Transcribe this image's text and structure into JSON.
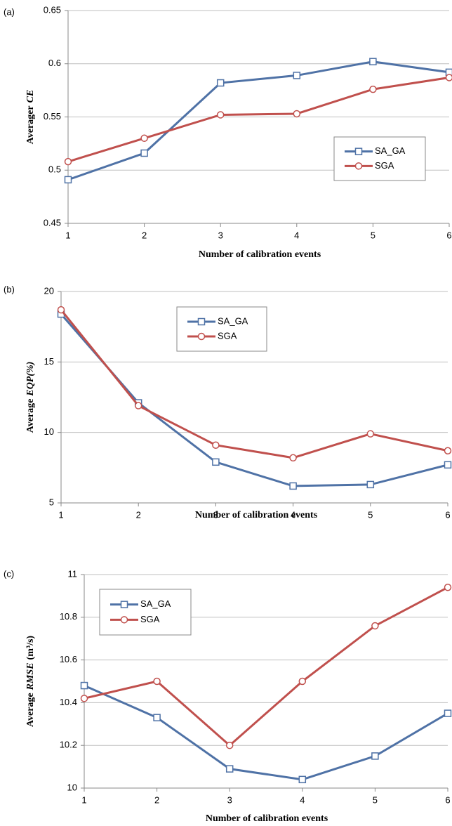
{
  "chart_data": [
    {
      "type": "line",
      "panel": "(a)",
      "xlabel": "Number of calibration events",
      "ylabel": [
        {
          "text": "Averager"
        },
        {
          "text": "CE",
          "italic": true
        }
      ],
      "x": [
        1,
        2,
        3,
        4,
        5,
        6
      ],
      "xlim": [
        1,
        6
      ],
      "xticks": [
        1,
        2,
        3,
        4,
        5,
        6
      ],
      "ylim": [
        0.45,
        0.65
      ],
      "yticks": [
        0.45,
        0.5,
        0.55,
        0.6,
        0.65
      ],
      "grid": true,
      "series": [
        {
          "name": "SA_GA",
          "color": "#4f72a6",
          "marker": "square",
          "values": [
            0.491,
            0.516,
            0.582,
            0.589,
            0.602,
            0.592
          ]
        },
        {
          "name": "SGA",
          "color": "#c0504d",
          "marker": "circle",
          "values": [
            0.508,
            0.53,
            0.552,
            0.553,
            0.576,
            0.587
          ]
        }
      ]
    },
    {
      "type": "line",
      "panel": "(b)",
      "xlabel": "Number of calibration events",
      "ylabel": [
        {
          "text": "Average"
        },
        {
          "text": "EQP(%)",
          "italic": true
        }
      ],
      "x": [
        1,
        2,
        3,
        4,
        5,
        6
      ],
      "xlim": [
        1,
        6
      ],
      "xticks": [
        1,
        2,
        3,
        4,
        5,
        6
      ],
      "ylim": [
        5,
        20
      ],
      "yticks": [
        5,
        10,
        15,
        20
      ],
      "grid": true,
      "series": [
        {
          "name": "SA_GA",
          "color": "#4f72a6",
          "marker": "square",
          "values": [
            18.4,
            12.1,
            7.9,
            6.2,
            6.3,
            7.7
          ]
        },
        {
          "name": "SGA",
          "color": "#c0504d",
          "marker": "circle",
          "values": [
            18.7,
            11.9,
            9.1,
            8.2,
            9.9,
            8.7
          ]
        }
      ]
    },
    {
      "type": "line",
      "panel": "(c)",
      "xlabel": "Number of calibration events",
      "ylabel": [
        {
          "text": "Average"
        },
        {
          "text": "RMSE",
          "italic": true
        },
        {
          "text": "(m³/s)"
        }
      ],
      "x": [
        1,
        2,
        3,
        4,
        5,
        6
      ],
      "xlim": [
        1,
        6
      ],
      "xticks": [
        1,
        2,
        3,
        4,
        5,
        6
      ],
      "ylim": [
        10,
        11
      ],
      "yticks": [
        10,
        10.2,
        10.4,
        10.6,
        10.8,
        11
      ],
      "grid": true,
      "series": [
        {
          "name": "SA_GA",
          "color": "#4f72a6",
          "marker": "square",
          "values": [
            10.48,
            10.33,
            10.09,
            10.04,
            10.15,
            10.35
          ]
        },
        {
          "name": "SGA",
          "color": "#c0504d",
          "marker": "circle",
          "values": [
            10.42,
            10.5,
            10.2,
            10.5,
            10.76,
            10.94
          ]
        }
      ]
    }
  ]
}
